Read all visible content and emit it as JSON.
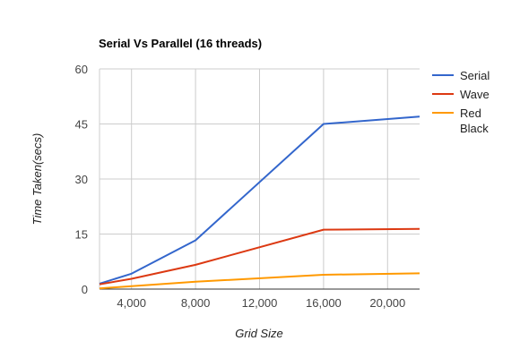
{
  "chart_data": {
    "type": "line",
    "title": "Serial Vs Parallel (16 threads)",
    "xlabel": "Grid Size",
    "ylabel": "Time Taken(secs)",
    "xlim": [
      2000,
      22000
    ],
    "ylim": [
      0,
      60
    ],
    "x_ticks": [
      4000,
      8000,
      12000,
      16000,
      20000
    ],
    "x_tick_labels": [
      "4,000",
      "8,000",
      "12,000",
      "16,000",
      "20,000"
    ],
    "y_ticks": [
      0,
      15,
      30,
      45,
      60
    ],
    "y_tick_labels": [
      "0",
      "15",
      "30",
      "45",
      "60"
    ],
    "grid": true,
    "legend_position": "right",
    "x": [
      2000,
      4000,
      8000,
      16000,
      22000
    ],
    "series": [
      {
        "name": "Serial",
        "color": "#3366cc",
        "values": [
          1.5,
          4.2,
          13.3,
          45,
          47
        ]
      },
      {
        "name": "Wave",
        "color": "#dc3912",
        "values": [
          1.3,
          2.8,
          6.6,
          16.2,
          16.4
        ]
      },
      {
        "name": "Red Black",
        "name_lines": [
          "Red",
          "Black"
        ],
        "color": "#ff9900",
        "values": [
          0.2,
          0.8,
          2.0,
          3.9,
          4.3
        ]
      }
    ]
  }
}
